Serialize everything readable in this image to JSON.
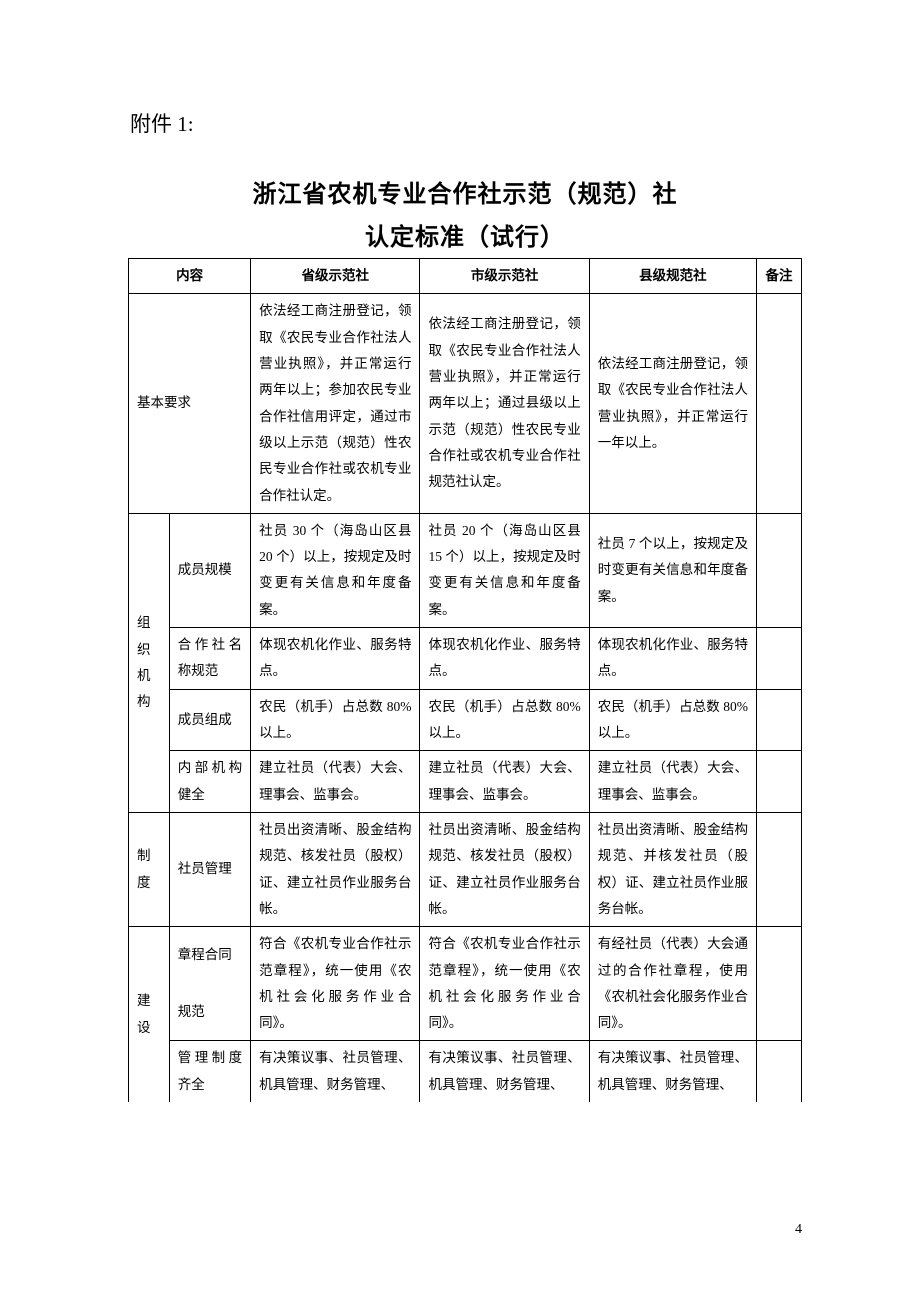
{
  "attachment_label": "附件 1:",
  "title_line1": "浙江省农机专业合作社示范（规范）社",
  "title_line2": "认定标准（试行）",
  "page_number": "4",
  "headers": {
    "content": "内容",
    "province": "省级示范社",
    "city": "市级示范社",
    "county": "县级规范社",
    "remark": "备注"
  },
  "rows": {
    "基本要求": {
      "label": "基本要求",
      "province": "依法经工商注册登记，领取《农民专业合作社法人营业执照》，并正常运行两年以上；参加农民专业合作社信用评定，通过市级以上示范（规范）性农民专业合作社或农机专业合作社认定。",
      "city": "依法经工商注册登记，领取《农民专业合作社法人营业执照》，并正常运行两年以上；通过县级以上示范（规范）性农民专业合作社或农机专业合作社规范社认定。",
      "county": "依法经工商注册登记，领取《农民专业合作社法人营业执照》，并正常运行一年以上。"
    },
    "组织机构": {
      "label": "组织机构",
      "成员规模": {
        "label": "成员规模",
        "province": "社员 30 个（海岛山区县20 个）以上，按规定及时变更有关信息和年度备案。",
        "city": "社员 20 个（海岛山区县15 个）以上，按规定及时变更有关信息和年度备案。",
        "county": "社员 7 个以上，按规定及时变更有关信息和年度备案。"
      },
      "合作社名称规范": {
        "label": "合作社名称规范",
        "province": "体现农机化作业、服务特点。",
        "city": "体现农机化作业、服务特点。",
        "county": "体现农机化作业、服务特点。"
      },
      "成员组成": {
        "label": "成员组成",
        "province": "农民（机手）占总数 80%以上。",
        "city": "农民（机手）占总数 80%以上。",
        "county": "农民（机手）占总数 80%以上。"
      },
      "内部机构健全": {
        "label": "内部机构健全",
        "province": "建立社员（代表）大会、理事会、监事会。",
        "city": "建立社员（代表）大会、理事会、监事会。",
        "county": "建立社员（代表）大会、理事会、监事会。"
      }
    },
    "制度": {
      "label": "制度",
      "社员管理": {
        "label": "社员管理",
        "province": "社员出资清晰、股金结构规范、核发社员（股权）证、建立社员作业服务台帐。",
        "city": "社员出资清晰、股金结构规范、核发社员（股权）证、建立社员作业服务台帐。",
        "county": "社员出资清晰、股金结构规范、并核发社员（股权）证、建立社员作业服务台帐。"
      }
    },
    "建设": {
      "label": "建设",
      "章程合同规范": {
        "label1": "章程合同",
        "label2": "规范",
        "province": "符合《农机专业合作社示范章程》，统一使用《农机社会化服务作业合同》。",
        "city": "符合《农机专业合作社示范章程》，统一使用《农机社会化服务作业合同》。",
        "county": "有经社员（代表）大会通过的合作社章程，使用《农机社会化服务作业合同》。"
      },
      "管理制度齐全": {
        "label": "管理制度齐全",
        "province": "有决策议事、社员管理、机具管理、财务管理、",
        "city": "有决策议事、社员管理、机具管理、财务管理、",
        "county": "有决策议事、社员管理、机具管理、财务管理、"
      }
    }
  }
}
